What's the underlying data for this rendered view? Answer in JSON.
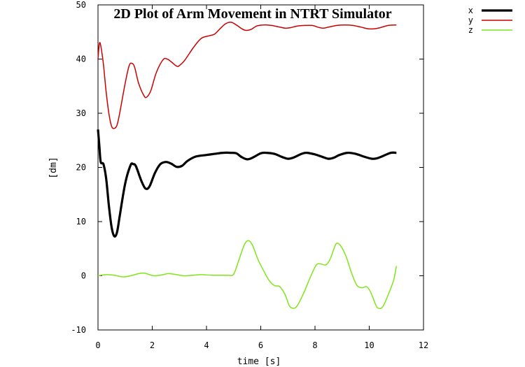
{
  "chart_data": {
    "type": "line",
    "title": "2D Plot of Arm Movement in NTRT Simulator",
    "xlabel": "time [s]",
    "ylabel": "[dm]",
    "xlim": [
      0,
      12
    ],
    "ylim": [
      -10,
      50
    ],
    "xticks": [
      "0",
      "2",
      "4",
      "6",
      "8",
      "10",
      "12"
    ],
    "yticks": [
      "-10",
      "0",
      "10",
      "20",
      "30",
      "40",
      "50"
    ],
    "grid": false,
    "legend_position": "top-right (outside plot)",
    "series": [
      {
        "name": "x",
        "color": "#000000",
        "points": [
          [
            0,
            27
          ],
          [
            0.05,
            24
          ],
          [
            0.1,
            21
          ],
          [
            0.2,
            20.6
          ],
          [
            0.3,
            18
          ],
          [
            0.4,
            13
          ],
          [
            0.5,
            9
          ],
          [
            0.6,
            7.3
          ],
          [
            0.7,
            8
          ],
          [
            0.8,
            11
          ],
          [
            1.0,
            17
          ],
          [
            1.2,
            20.4
          ],
          [
            1.3,
            20.6
          ],
          [
            1.4,
            20.2
          ],
          [
            1.6,
            17.5
          ],
          [
            1.75,
            16.1
          ],
          [
            1.9,
            16.5
          ],
          [
            2.1,
            19
          ],
          [
            2.3,
            20.6
          ],
          [
            2.5,
            21
          ],
          [
            2.7,
            20.7
          ],
          [
            2.9,
            20.1
          ],
          [
            3.1,
            20.3
          ],
          [
            3.3,
            21.2
          ],
          [
            3.6,
            22
          ],
          [
            4.0,
            22.3
          ],
          [
            4.3,
            22.5
          ],
          [
            4.6,
            22.7
          ],
          [
            4.9,
            22.7
          ],
          [
            5.1,
            22.6
          ],
          [
            5.3,
            21.9
          ],
          [
            5.5,
            21.5
          ],
          [
            5.7,
            21.8
          ],
          [
            6.0,
            22.6
          ],
          [
            6.2,
            22.7
          ],
          [
            6.5,
            22.5
          ],
          [
            6.8,
            21.9
          ],
          [
            7.0,
            21.6
          ],
          [
            7.2,
            21.8
          ],
          [
            7.5,
            22.5
          ],
          [
            7.7,
            22.7
          ],
          [
            8.0,
            22.4
          ],
          [
            8.3,
            21.9
          ],
          [
            8.5,
            21.6
          ],
          [
            8.7,
            21.8
          ],
          [
            8.9,
            22.3
          ],
          [
            9.2,
            22.7
          ],
          [
            9.5,
            22.5
          ],
          [
            9.8,
            22.0
          ],
          [
            10.1,
            21.6
          ],
          [
            10.3,
            21.7
          ],
          [
            10.5,
            22.1
          ],
          [
            10.8,
            22.7
          ],
          [
            11.0,
            22.7
          ]
        ]
      },
      {
        "name": "y",
        "color": "#cc0000",
        "points": [
          [
            0,
            40
          ],
          [
            0.05,
            42.8
          ],
          [
            0.1,
            42.5
          ],
          [
            0.2,
            39
          ],
          [
            0.3,
            34
          ],
          [
            0.4,
            30
          ],
          [
            0.5,
            27.6
          ],
          [
            0.6,
            27.2
          ],
          [
            0.7,
            27.8
          ],
          [
            0.8,
            30
          ],
          [
            1.0,
            35.5
          ],
          [
            1.15,
            38.8
          ],
          [
            1.25,
            39.2
          ],
          [
            1.35,
            38.5
          ],
          [
            1.5,
            35.5
          ],
          [
            1.7,
            33.2
          ],
          [
            1.8,
            33
          ],
          [
            1.95,
            34.2
          ],
          [
            2.15,
            37.5
          ],
          [
            2.4,
            39.9
          ],
          [
            2.55,
            40.0
          ],
          [
            2.7,
            39.5
          ],
          [
            2.9,
            38.7
          ],
          [
            3.0,
            38.8
          ],
          [
            3.2,
            39.8
          ],
          [
            3.5,
            42
          ],
          [
            3.8,
            43.8
          ],
          [
            4.1,
            44.3
          ],
          [
            4.3,
            44.6
          ],
          [
            4.5,
            45.6
          ],
          [
            4.7,
            46.5
          ],
          [
            4.9,
            46.8
          ],
          [
            5.1,
            46.3
          ],
          [
            5.3,
            45.6
          ],
          [
            5.45,
            45.3
          ],
          [
            5.65,
            45.5
          ],
          [
            5.85,
            46.1
          ],
          [
            6.1,
            46.3
          ],
          [
            6.4,
            46.2
          ],
          [
            6.7,
            45.9
          ],
          [
            6.9,
            45.7
          ],
          [
            7.1,
            45.8
          ],
          [
            7.35,
            46.1
          ],
          [
            7.6,
            46.2
          ],
          [
            7.9,
            46.2
          ],
          [
            8.1,
            45.9
          ],
          [
            8.3,
            45.7
          ],
          [
            8.5,
            45.9
          ],
          [
            8.8,
            46.2
          ],
          [
            9.1,
            46.3
          ],
          [
            9.4,
            46.2
          ],
          [
            9.7,
            45.9
          ],
          [
            9.95,
            45.6
          ],
          [
            10.2,
            45.6
          ],
          [
            10.4,
            45.8
          ],
          [
            10.7,
            46.2
          ],
          [
            11.0,
            46.3
          ]
        ]
      },
      {
        "name": "z",
        "color": "#7fe61a",
        "points": [
          [
            0,
            0
          ],
          [
            0.3,
            0.2
          ],
          [
            0.6,
            0.1
          ],
          [
            0.9,
            -0.2
          ],
          [
            1.2,
            0
          ],
          [
            1.5,
            0.4
          ],
          [
            1.7,
            0.5
          ],
          [
            1.9,
            0.2
          ],
          [
            2.1,
            0
          ],
          [
            2.4,
            0.2
          ],
          [
            2.6,
            0.4
          ],
          [
            2.9,
            0.2
          ],
          [
            3.2,
            0
          ],
          [
            3.5,
            0.1
          ],
          [
            3.8,
            0.2
          ],
          [
            4.2,
            0.1
          ],
          [
            4.5,
            0.1
          ],
          [
            4.8,
            0.1
          ],
          [
            5.0,
            0.3
          ],
          [
            5.2,
            3
          ],
          [
            5.4,
            5.8
          ],
          [
            5.55,
            6.5
          ],
          [
            5.7,
            5.6
          ],
          [
            5.9,
            3
          ],
          [
            6.1,
            1
          ],
          [
            6.3,
            -0.8
          ],
          [
            6.5,
            -1.8
          ],
          [
            6.7,
            -2
          ],
          [
            6.9,
            -3.5
          ],
          [
            7.05,
            -5.5
          ],
          [
            7.2,
            -6
          ],
          [
            7.35,
            -5.5
          ],
          [
            7.6,
            -3
          ],
          [
            7.85,
            0
          ],
          [
            8.05,
            2
          ],
          [
            8.2,
            2.2
          ],
          [
            8.4,
            2
          ],
          [
            8.55,
            3
          ],
          [
            8.7,
            5
          ],
          [
            8.8,
            6
          ],
          [
            8.95,
            5.5
          ],
          [
            9.15,
            3.5
          ],
          [
            9.35,
            0.5
          ],
          [
            9.55,
            -1.8
          ],
          [
            9.75,
            -2.2
          ],
          [
            9.9,
            -2
          ],
          [
            10.05,
            -3
          ],
          [
            10.25,
            -5.5
          ],
          [
            10.35,
            -6
          ],
          [
            10.5,
            -5.7
          ],
          [
            10.7,
            -3.5
          ],
          [
            10.9,
            -0.8
          ],
          [
            11.0,
            1.8
          ]
        ]
      }
    ]
  }
}
